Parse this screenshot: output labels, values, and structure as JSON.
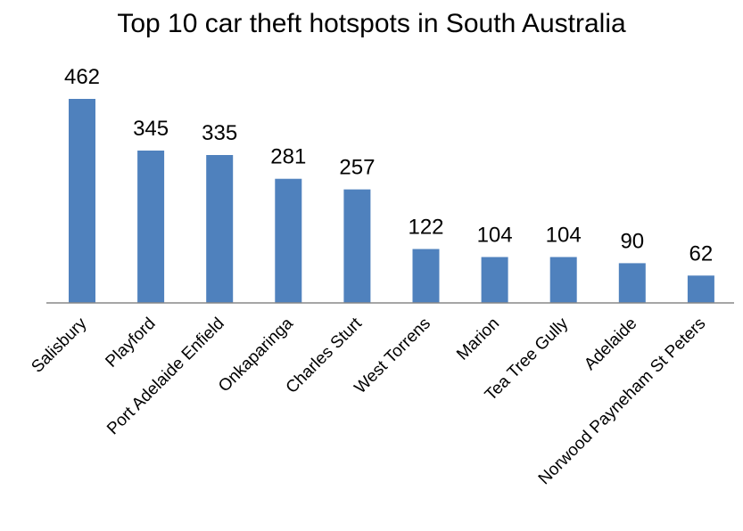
{
  "chart_data": {
    "type": "bar",
    "title": "Top 10 car theft hotspots in South Australia",
    "categories": [
      "Salisbury",
      "Playford",
      "Port Adelaide Enfield",
      "Onkaparinga",
      "Charles Sturt",
      "West Torrens",
      "Marion",
      "Tea Tree Gully",
      "Adelaide",
      "Norwood Payneham St Peters"
    ],
    "values": [
      462,
      345,
      335,
      281,
      257,
      122,
      104,
      104,
      90,
      62
    ],
    "data_labels": [
      "462",
      "345",
      "335",
      "281",
      "257",
      "122",
      "104",
      "104",
      "90",
      "62"
    ],
    "xlabel": "",
    "ylabel": "",
    "ylim": [
      0,
      462
    ],
    "grid": false,
    "legend": "none",
    "bar_color": "#4F81BD"
  }
}
